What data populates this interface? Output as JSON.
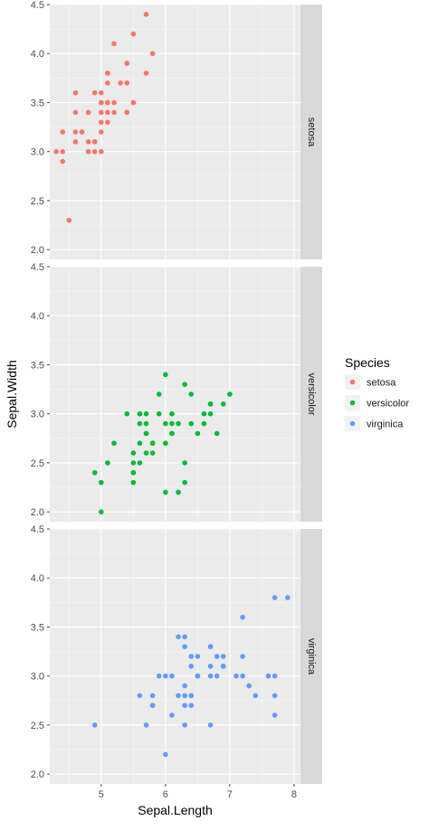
{
  "chart_data": {
    "type": "scatter",
    "facet_direction": "vertical",
    "facet_strip_position": "right",
    "xlabel": "Sepal.Length",
    "ylabel": "Sepal.Width",
    "xlim": [
      4.2,
      8.1
    ],
    "ylim": [
      1.9,
      4.5
    ],
    "x_ticks": [
      5,
      6,
      7,
      8
    ],
    "y_ticks": [
      2.0,
      2.5,
      3.0,
      3.5,
      4.0,
      4.5
    ],
    "grid": true,
    "legend": {
      "title": "Species",
      "position": "right",
      "entries": [
        {
          "label": "setosa",
          "color": "#F8766D"
        },
        {
          "label": "versicolor",
          "color": "#00BA38"
        },
        {
          "label": "virginica",
          "color": "#619CFF"
        }
      ]
    },
    "panel_background": "#EBEBEB",
    "strip_background": "#D9D9D9",
    "series": [
      {
        "name": "setosa",
        "color": "#F8766D",
        "points": [
          [
            5.1,
            3.5
          ],
          [
            4.9,
            3.0
          ],
          [
            4.7,
            3.2
          ],
          [
            4.6,
            3.1
          ],
          [
            5.0,
            3.6
          ],
          [
            5.4,
            3.9
          ],
          [
            4.6,
            3.4
          ],
          [
            5.0,
            3.4
          ],
          [
            4.4,
            2.9
          ],
          [
            4.9,
            3.1
          ],
          [
            5.4,
            3.7
          ],
          [
            4.8,
            3.4
          ],
          [
            4.8,
            3.0
          ],
          [
            4.3,
            3.0
          ],
          [
            5.8,
            4.0
          ],
          [
            5.7,
            4.4
          ],
          [
            5.4,
            3.9
          ],
          [
            5.1,
            3.5
          ],
          [
            5.7,
            3.8
          ],
          [
            5.1,
            3.8
          ],
          [
            5.4,
            3.4
          ],
          [
            5.1,
            3.7
          ],
          [
            4.6,
            3.6
          ],
          [
            5.1,
            3.3
          ],
          [
            4.8,
            3.4
          ],
          [
            5.0,
            3.0
          ],
          [
            5.0,
            3.4
          ],
          [
            5.2,
            3.5
          ],
          [
            5.2,
            3.4
          ],
          [
            4.7,
            3.2
          ],
          [
            4.8,
            3.1
          ],
          [
            5.4,
            3.4
          ],
          [
            5.2,
            4.1
          ],
          [
            5.5,
            4.2
          ],
          [
            4.9,
            3.1
          ],
          [
            5.0,
            3.2
          ],
          [
            5.5,
            3.5
          ],
          [
            4.9,
            3.6
          ],
          [
            4.4,
            3.0
          ],
          [
            5.1,
            3.4
          ],
          [
            5.0,
            3.5
          ],
          [
            4.5,
            2.3
          ],
          [
            4.4,
            3.2
          ],
          [
            5.0,
            3.5
          ],
          [
            5.1,
            3.8
          ],
          [
            4.8,
            3.0
          ],
          [
            5.1,
            3.8
          ],
          [
            4.6,
            3.2
          ],
          [
            5.3,
            3.7
          ],
          [
            5.0,
            3.3
          ]
        ]
      },
      {
        "name": "versicolor",
        "color": "#00BA38",
        "points": [
          [
            7.0,
            3.2
          ],
          [
            6.4,
            3.2
          ],
          [
            6.9,
            3.1
          ],
          [
            5.5,
            2.3
          ],
          [
            6.5,
            2.8
          ],
          [
            5.7,
            2.8
          ],
          [
            6.3,
            3.3
          ],
          [
            4.9,
            2.4
          ],
          [
            6.6,
            2.9
          ],
          [
            5.2,
            2.7
          ],
          [
            5.0,
            2.0
          ],
          [
            5.9,
            3.0
          ],
          [
            6.0,
            2.2
          ],
          [
            6.1,
            2.9
          ],
          [
            5.6,
            2.9
          ],
          [
            6.7,
            3.1
          ],
          [
            5.6,
            3.0
          ],
          [
            5.8,
            2.7
          ],
          [
            6.2,
            2.2
          ],
          [
            5.6,
            2.5
          ],
          [
            5.9,
            3.2
          ],
          [
            6.1,
            2.8
          ],
          [
            6.3,
            2.5
          ],
          [
            6.1,
            2.8
          ],
          [
            6.4,
            2.9
          ],
          [
            6.6,
            3.0
          ],
          [
            6.8,
            2.8
          ],
          [
            6.7,
            3.0
          ],
          [
            6.0,
            2.9
          ],
          [
            5.7,
            2.6
          ],
          [
            5.5,
            2.4
          ],
          [
            5.5,
            2.4
          ],
          [
            5.8,
            2.7
          ],
          [
            6.0,
            2.7
          ],
          [
            5.4,
            3.0
          ],
          [
            6.0,
            3.4
          ],
          [
            6.7,
            3.1
          ],
          [
            6.3,
            2.3
          ],
          [
            5.6,
            3.0
          ],
          [
            5.5,
            2.5
          ],
          [
            5.5,
            2.6
          ],
          [
            6.1,
            3.0
          ],
          [
            5.8,
            2.6
          ],
          [
            5.0,
            2.3
          ],
          [
            5.6,
            2.7
          ],
          [
            5.7,
            3.0
          ],
          [
            5.7,
            2.9
          ],
          [
            6.2,
            2.9
          ],
          [
            5.1,
            2.5
          ],
          [
            5.7,
            2.8
          ]
        ]
      },
      {
        "name": "virginica",
        "color": "#619CFF",
        "points": [
          [
            6.3,
            3.3
          ],
          [
            5.8,
            2.7
          ],
          [
            7.1,
            3.0
          ],
          [
            6.3,
            2.9
          ],
          [
            6.5,
            3.0
          ],
          [
            7.6,
            3.0
          ],
          [
            4.9,
            2.5
          ],
          [
            7.3,
            2.9
          ],
          [
            6.7,
            2.5
          ],
          [
            7.2,
            3.6
          ],
          [
            6.5,
            3.2
          ],
          [
            6.4,
            2.7
          ],
          [
            6.8,
            3.0
          ],
          [
            5.7,
            2.5
          ],
          [
            5.8,
            2.8
          ],
          [
            6.4,
            3.2
          ],
          [
            6.5,
            3.0
          ],
          [
            7.7,
            3.8
          ],
          [
            7.7,
            2.6
          ],
          [
            6.0,
            2.2
          ],
          [
            6.9,
            3.2
          ],
          [
            5.6,
            2.8
          ],
          [
            7.7,
            2.8
          ],
          [
            6.3,
            2.7
          ],
          [
            6.7,
            3.3
          ],
          [
            7.2,
            3.2
          ],
          [
            6.2,
            2.8
          ],
          [
            6.1,
            3.0
          ],
          [
            6.4,
            2.8
          ],
          [
            7.2,
            3.0
          ],
          [
            7.4,
            2.8
          ],
          [
            7.9,
            3.8
          ],
          [
            6.4,
            2.8
          ],
          [
            6.3,
            2.8
          ],
          [
            6.1,
            2.6
          ],
          [
            7.7,
            3.0
          ],
          [
            6.3,
            3.4
          ],
          [
            6.4,
            3.1
          ],
          [
            6.0,
            3.0
          ],
          [
            6.9,
            3.1
          ],
          [
            6.7,
            3.1
          ],
          [
            6.9,
            3.1
          ],
          [
            5.8,
            2.7
          ],
          [
            6.8,
            3.2
          ],
          [
            6.7,
            3.3
          ],
          [
            6.7,
            3.0
          ],
          [
            6.3,
            2.5
          ],
          [
            6.5,
            3.0
          ],
          [
            6.2,
            3.4
          ],
          [
            5.9,
            3.0
          ]
        ]
      }
    ]
  }
}
